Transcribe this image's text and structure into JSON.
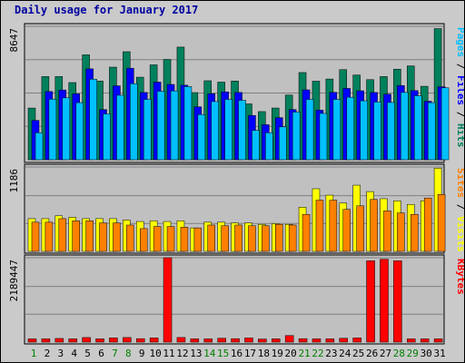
{
  "title": "Daily usage for January 2017",
  "chart_data": {
    "type": "bar",
    "title": "Daily usage for January 2017",
    "categories": [
      "1",
      "2",
      "3",
      "4",
      "5",
      "6",
      "7",
      "8",
      "9",
      "10",
      "11",
      "12",
      "13",
      "14",
      "15",
      "16",
      "17",
      "18",
      "19",
      "20",
      "21",
      "22",
      "23",
      "24",
      "25",
      "26",
      "27",
      "28",
      "29",
      "30",
      "31"
    ],
    "weekend_days": [
      "1",
      "7",
      "8",
      "14",
      "15",
      "21",
      "22",
      "28",
      "29"
    ],
    "colors": {
      "hits": "#00805c",
      "files": "#0000ff",
      "pages": "#00c0ff",
      "visits": "#ffff00",
      "sites": "#ff8000",
      "kbytes": "#ff0000",
      "weekday_label": "#000000",
      "weekend_label": "#008000"
    },
    "panels": [
      {
        "id": "top",
        "ymax_label": "8647",
        "ymax": 8647,
        "axis_labels": [
          {
            "text": "Pages",
            "color": "#00c0ff"
          },
          {
            "text": " / ",
            "color": "#000000"
          },
          {
            "text": "Files",
            "color": "#0000ff"
          },
          {
            "text": " / ",
            "color": "#000000"
          },
          {
            "text": "Hits",
            "color": "#00805c"
          }
        ],
        "series": [
          {
            "name": "Hits",
            "key": "hits",
            "values": [
              3350,
              5390,
              5390,
              5000,
              6800,
              5100,
              6000,
              7000,
              5350,
              6150,
              6500,
              7300,
              4350,
              5120,
              5030,
              5100,
              3620,
              3120,
              3350,
              4190,
              5650,
              5090,
              5230,
              5840,
              5490,
              5190,
              5390,
              5870,
              6080,
              4760,
              8500
            ]
          },
          {
            "name": "Files",
            "key": "files",
            "values": [
              2550,
              4420,
              4520,
              4270,
              5890,
              3250,
              4790,
              5930,
              4360,
              5030,
              4880,
              4830,
              3430,
              4280,
              4400,
              4360,
              2870,
              2270,
              2730,
              3250,
              4530,
              3210,
              4370,
              4620,
              4470,
              4360,
              4250,
              4810,
              4480,
              3790,
              4730
            ]
          },
          {
            "name": "Pages",
            "key": "pages",
            "values": [
              1750,
              3920,
              4010,
              3700,
              5220,
              2970,
              4180,
              4930,
              3910,
              4440,
              4460,
              4740,
              2930,
              3770,
              3910,
              3850,
              1900,
              1750,
              2130,
              3090,
              3910,
              3000,
              3910,
              4050,
              3820,
              3740,
              3710,
              4360,
              4150,
              3700,
              4660
            ]
          }
        ]
      },
      {
        "id": "middle",
        "ymax_label": "1186",
        "ymax": 1186,
        "axis_labels": [
          {
            "text": "Sites",
            "color": "#ff8000"
          },
          {
            "text": " / ",
            "color": "#000000"
          },
          {
            "text": "Visits",
            "color": "#ffff00"
          }
        ],
        "series": [
          {
            "name": "Visits",
            "key": "visits",
            "values": [
              460,
              460,
              500,
              480,
              460,
              460,
              460,
              440,
              420,
              430,
              420,
              430,
              330,
              410,
              410,
              400,
              400,
              380,
              390,
              380,
              620,
              880,
              790,
              680,
              930,
              840,
              740,
              710,
              660,
              710,
              1170
            ]
          },
          {
            "name": "Sites",
            "key": "sites",
            "values": [
              410,
              410,
              460,
              430,
              430,
              400,
              400,
              370,
              320,
              350,
              350,
              340,
              330,
              370,
              360,
              370,
              360,
              360,
              380,
              370,
              520,
              720,
              720,
              590,
              640,
              730,
              570,
              540,
              520,
              750,
              800
            ]
          }
        ]
      },
      {
        "id": "bottom",
        "ymax_label": "2189447",
        "ymax": 2189447,
        "axis_labels": [
          {
            "text": "KBytes",
            "color": "#ff0000"
          }
        ],
        "series": [
          {
            "name": "KBytes",
            "key": "kbytes",
            "values": [
              85000,
              85000,
              95000,
              85000,
              120000,
              85000,
              110000,
              120000,
              90000,
              110000,
              2189447,
              120000,
              85000,
              85000,
              100000,
              90000,
              110000,
              80000,
              85000,
              170000,
              90000,
              85000,
              85000,
              100000,
              110000,
              2110000,
              2150000,
              2110000,
              85000,
              85000,
              85000
            ]
          }
        ]
      }
    ]
  }
}
